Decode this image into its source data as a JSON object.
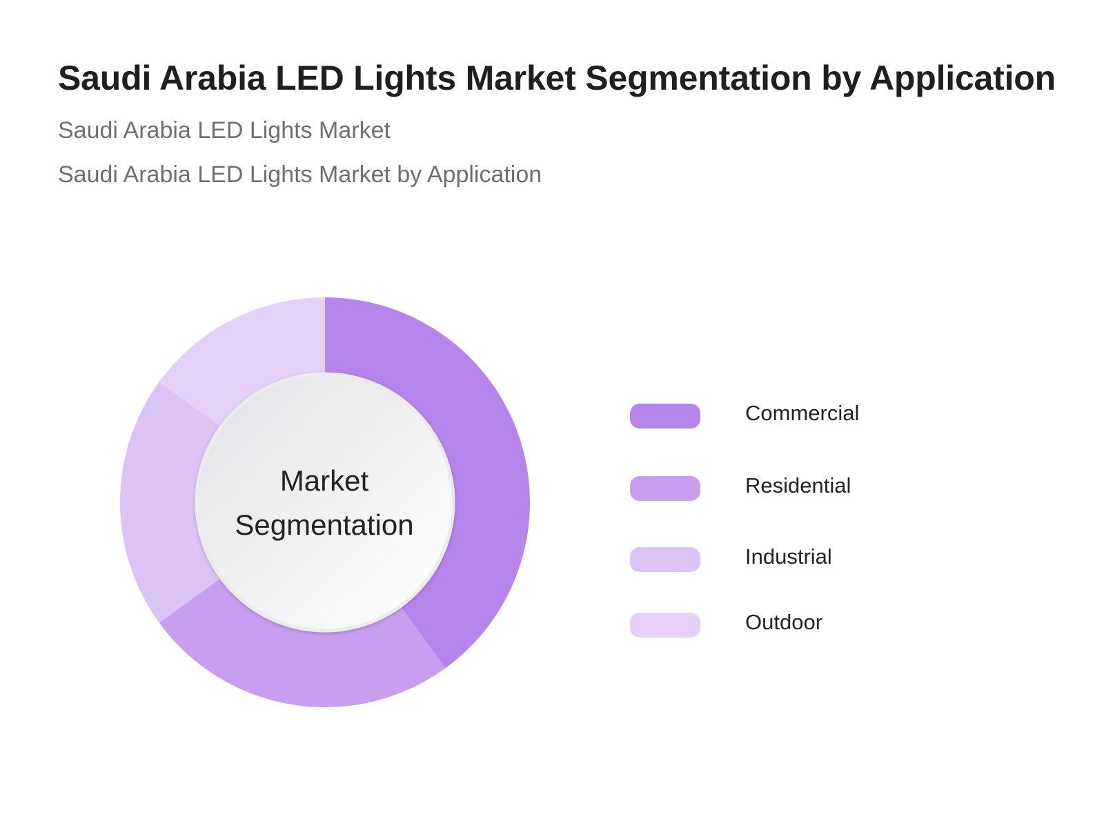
{
  "header": {
    "title": "Saudi Arabia LED Lights Market Segmentation by Application",
    "subtitle_1": "Saudi Arabia LED Lights Market",
    "subtitle_2": "Saudi Arabia LED Lights Market by Application"
  },
  "center_label": {
    "line1": "Market",
    "line2": "Segmentation"
  },
  "chart_data": {
    "type": "pie",
    "variant": "donut",
    "categories": [
      "Commercial",
      "Residential",
      "Industrial",
      "Outdoor"
    ],
    "values": [
      40,
      25,
      20,
      15
    ],
    "colors": [
      "#b585ec",
      "#c89ff0",
      "#dcc3f6",
      "#e5d0f8"
    ],
    "legend_position": "right"
  }
}
